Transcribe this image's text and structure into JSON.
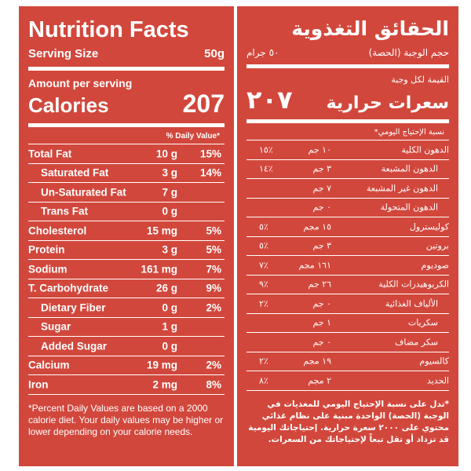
{
  "english": {
    "title": "Nutrition Facts",
    "serving_size_label": "Serving Size",
    "serving_size": "50g",
    "amount_per_serving": "Amount per serving",
    "calories_label": "Calories",
    "calories": "207",
    "daily_value_header": "% Daily Value*",
    "rows": [
      {
        "name": "Total Fat",
        "amount": "10 g",
        "dv": "15%"
      },
      {
        "name": "Saturated Fat",
        "amount": "3 g",
        "dv": "14%"
      },
      {
        "name": "Un-Saturated Fat",
        "amount": "7 g"
      },
      {
        "name": "Trans Fat",
        "amount": "0 g"
      },
      {
        "name": "Cholesterol",
        "amount": "15 mg",
        "dv": "5%"
      },
      {
        "name": "Protein",
        "amount": "3 g",
        "dv": "5%"
      },
      {
        "name": "Sodium",
        "amount": "161 mg",
        "dv": "7%"
      },
      {
        "name": "T. Carbohydrate",
        "amount": "26 g",
        "dv": "9%"
      },
      {
        "name": "Dietary Fiber",
        "amount": "0 g",
        "dv": "2%"
      },
      {
        "name": "Sugar",
        "amount": "1 g"
      },
      {
        "name": "Added Sugar",
        "amount": "0 g"
      },
      {
        "name": "Calcium",
        "amount": "19 mg",
        "dv": "2%"
      },
      {
        "name": "Iron",
        "amount": "2 mg",
        "dv": "8%"
      }
    ],
    "footnote": "*Percent Daily Values are based on a 2000 calorie diet. Your daily values may be higher or lower depending on your calorie needs."
  },
  "arabic": {
    "title": "الحقائق التغذوية",
    "serving_size_label": "حجم الوجبة (الحصة)",
    "serving_size": "٥٠ جرام",
    "amount_per_serving": "القيمة لكل وجبة",
    "calories_label": "سعرات حرارية",
    "calories": "٢٠٧",
    "daily_value_header": "نسبة الإحتياج اليومي*",
    "rows": [
      {
        "name": "الدهون الكلية",
        "amount": "١٠ جم",
        "dv": "٪١٥"
      },
      {
        "name": "الدهون المشبعة",
        "amount": "٣ جم",
        "dv": "٪١٤"
      },
      {
        "name": "الدهون غير المشبعة",
        "amount": "٧ جم"
      },
      {
        "name": "الدهون المتحولة",
        "amount": "٠ جم"
      },
      {
        "name": "كوليسترول",
        "amount": "١٥ مجم",
        "dv": "٪٥"
      },
      {
        "name": "بروتين",
        "amount": "٣ جم",
        "dv": "٪٥"
      },
      {
        "name": "صوديوم",
        "amount": "١٦١ مجم",
        "dv": "٪٧"
      },
      {
        "name": "الكربوهيدرات الكلية",
        "amount": "٢٦ جم",
        "dv": "٪٩"
      },
      {
        "name": "الألياف الغذائية",
        "amount": "٠ جم",
        "dv": "٪٢"
      },
      {
        "name": "سكريات",
        "amount": "١ جم"
      },
      {
        "name": "سكر مضاف",
        "amount": "٠ جم"
      },
      {
        "name": "كالسيوم",
        "amount": "١٩ مجم",
        "dv": "٪٢"
      },
      {
        "name": "الحديد",
        "amount": "٢ مجم",
        "dv": "٪٨"
      }
    ],
    "footnote": "*تدل على نسبة الإحتياج اليومي للمغذيات في الوجبة (الحصة) الواحدة مبنية على نظام غذائي محتوي على ٢٠٠٠ سعرة حرارية. إحتياجاتك اليومية قد تزداد أو تقل تبعاً لإحتياجاتك من السعرات."
  }
}
